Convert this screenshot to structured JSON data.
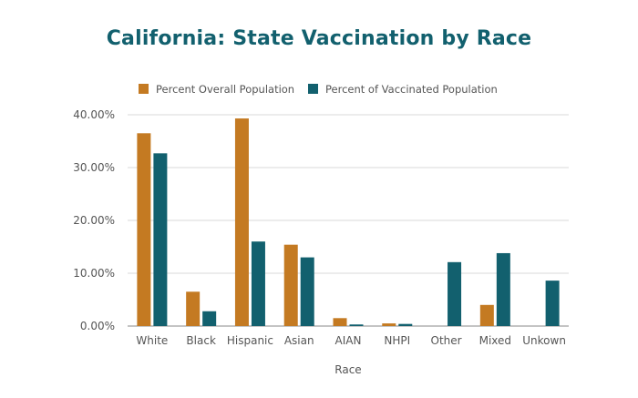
{
  "chart_data": {
    "type": "bar",
    "title": "California: State Vaccination by Race",
    "xlabel": "Race",
    "ylabel": "",
    "categories": [
      "White",
      "Black",
      "Hispanic",
      "Asian",
      "AIAN",
      "NHPI",
      "Other",
      "Mixed",
      "Unkown"
    ],
    "series": [
      {
        "name": "Percent Overall Population",
        "color": "#c47a22",
        "values": [
          36.5,
          6.5,
          39.3,
          15.4,
          1.5,
          0.5,
          null,
          4.0,
          null
        ]
      },
      {
        "name": "Percent of Vaccinated Population",
        "color": "#12606e",
        "values": [
          32.7,
          2.8,
          16.0,
          13.0,
          0.3,
          0.4,
          12.1,
          13.8,
          8.6
        ]
      }
    ],
    "ylim": [
      0,
      40
    ],
    "yticks": [
      0,
      10,
      20,
      30,
      40
    ],
    "ytick_labels": [
      "0.00%",
      "10.00%",
      "20.00%",
      "30.00%",
      "40.00%"
    ],
    "grid": true,
    "legend_position": "top"
  }
}
